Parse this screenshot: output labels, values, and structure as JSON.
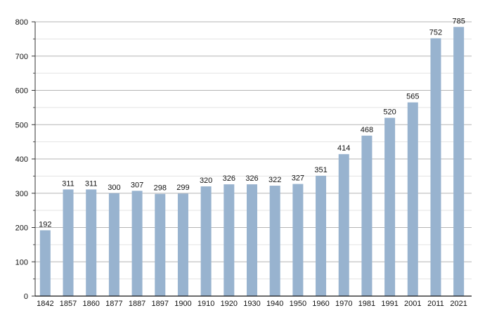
{
  "chart_data": {
    "type": "bar",
    "title": "",
    "xlabel": "",
    "ylabel": "",
    "ylim": [
      0,
      800
    ],
    "yticks": [
      0,
      100,
      200,
      300,
      400,
      500,
      600,
      700,
      800
    ],
    "grid": true,
    "bar_color": "#98b3cf",
    "categories": [
      "1842",
      "1857",
      "1860",
      "1877",
      "1887",
      "1897",
      "1900",
      "1910",
      "1920",
      "1930",
      "1940",
      "1950",
      "1960",
      "1970",
      "1981",
      "1991",
      "2001",
      "2011",
      "2021"
    ],
    "values": [
      192,
      311,
      311,
      300,
      307,
      298,
      299,
      320,
      326,
      326,
      322,
      327,
      351,
      414,
      468,
      520,
      565,
      752,
      785
    ]
  }
}
